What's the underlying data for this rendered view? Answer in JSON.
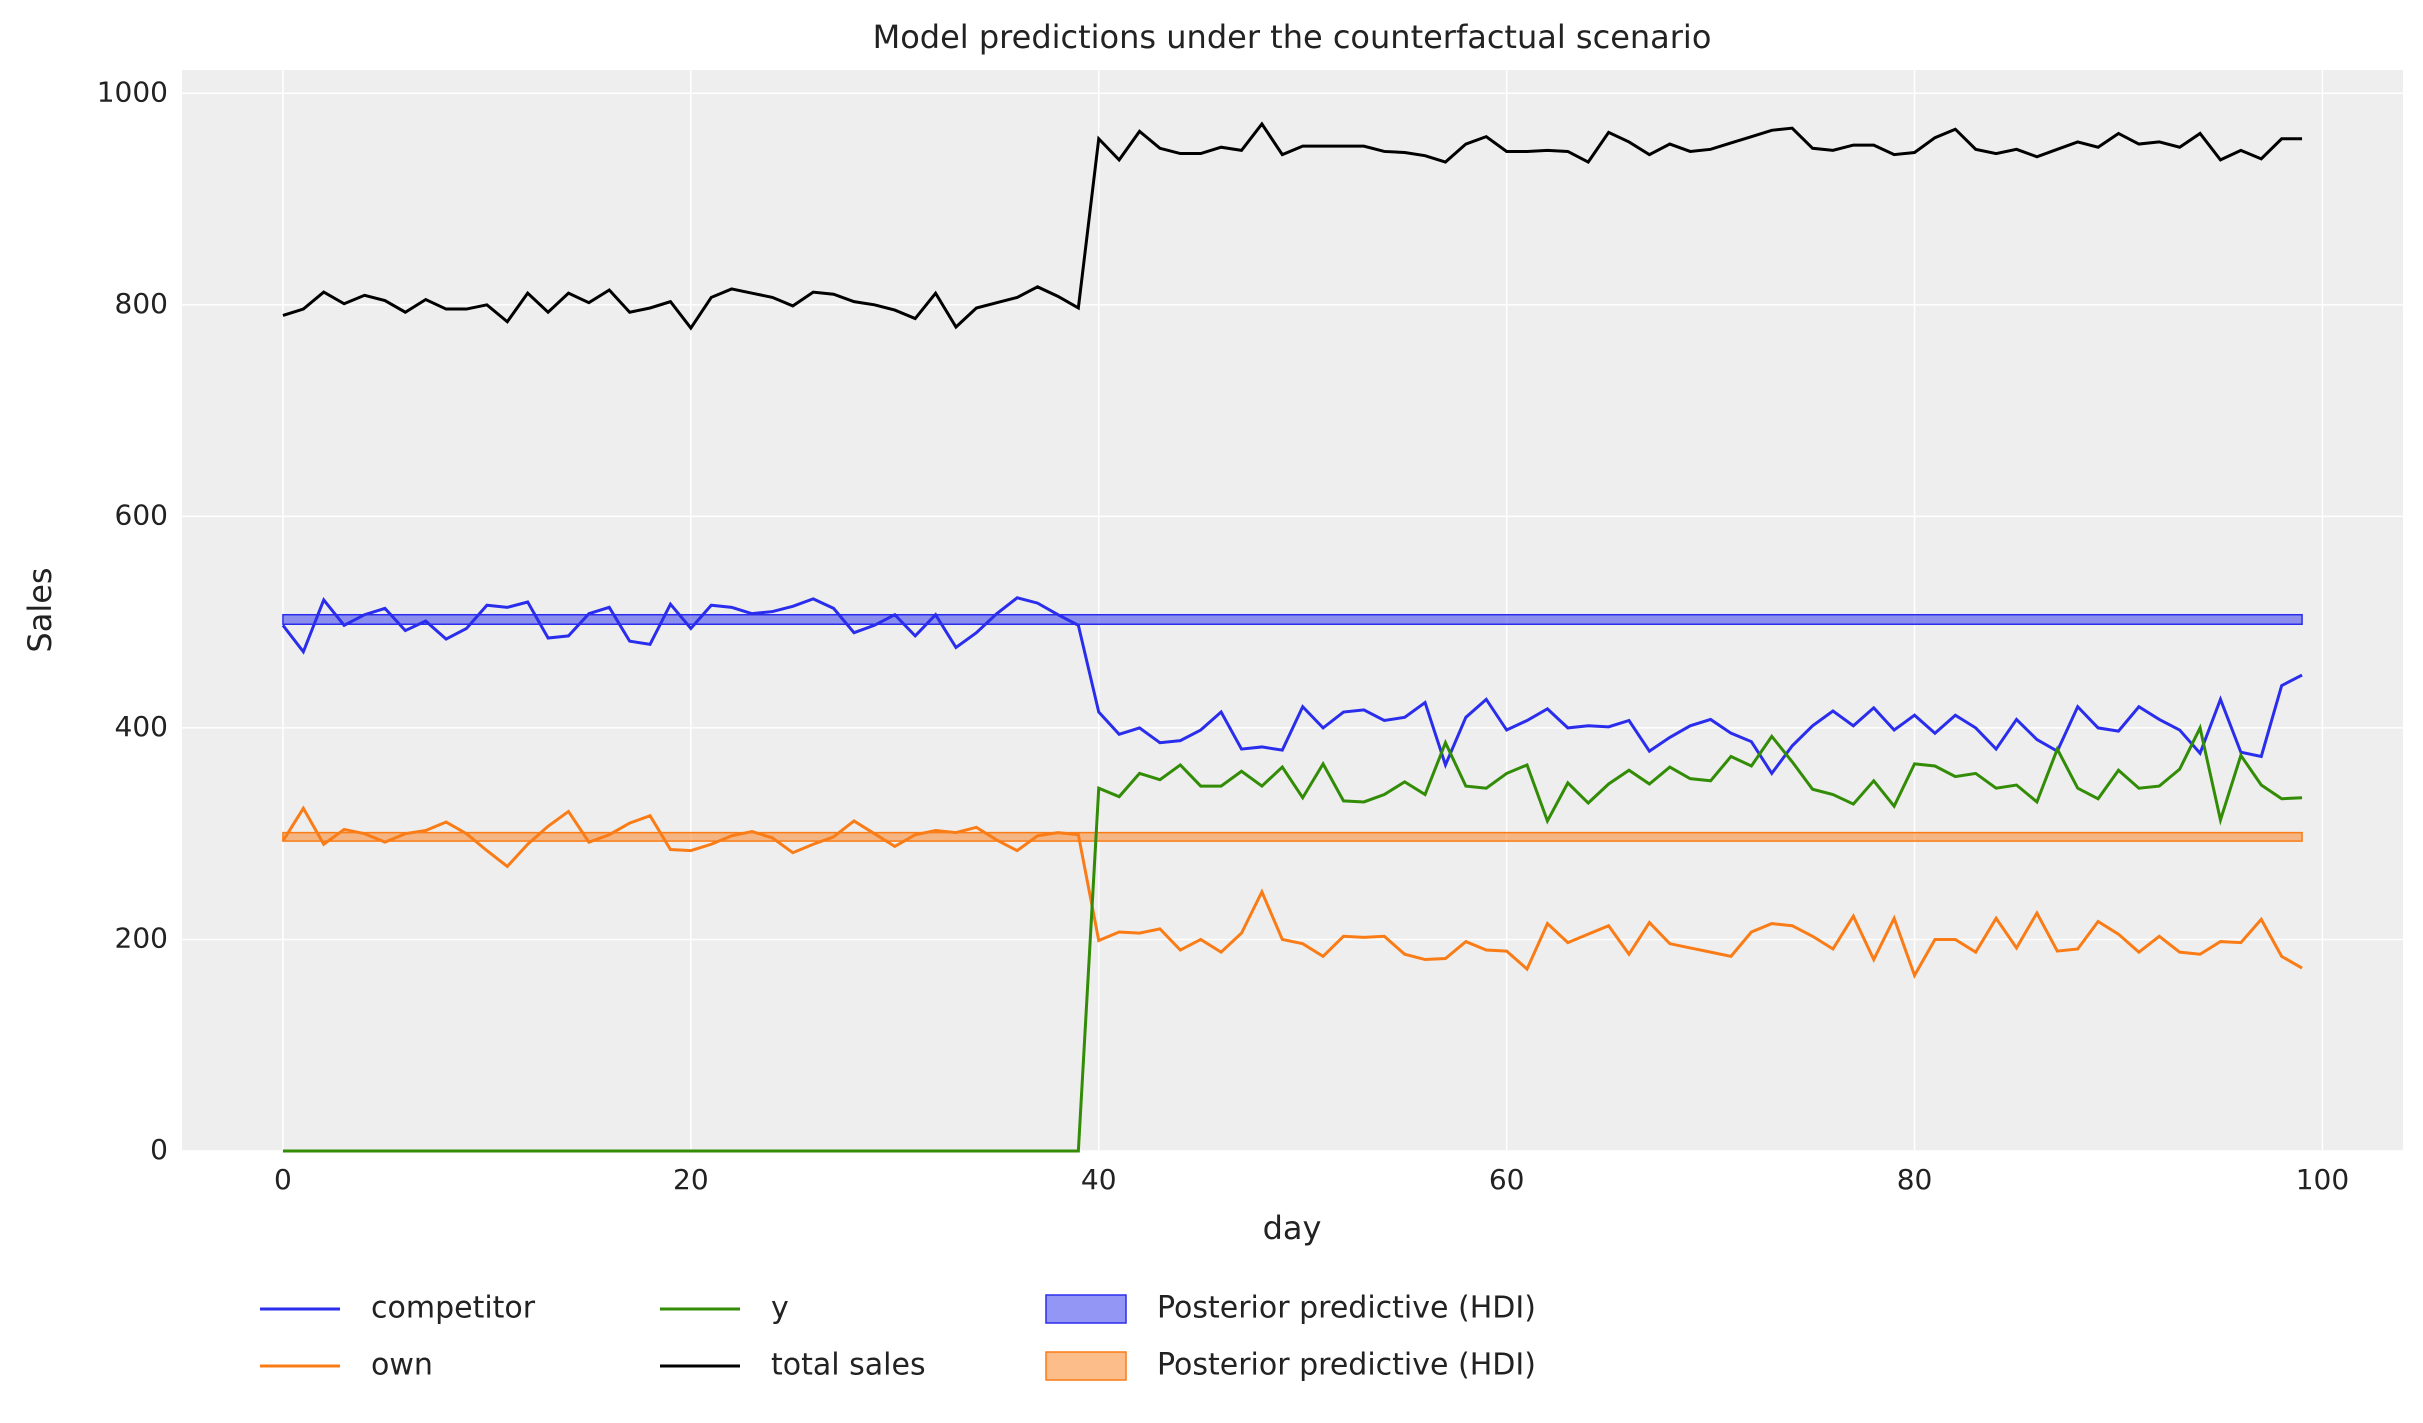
{
  "chart_data": {
    "type": "line",
    "title": "Model predictions under the counterfactual scenario",
    "x_label": "day",
    "y_label": "Sales",
    "x": [
      0,
      1,
      2,
      3,
      4,
      5,
      6,
      7,
      8,
      9,
      10,
      11,
      12,
      13,
      14,
      15,
      16,
      17,
      18,
      19,
      20,
      21,
      22,
      23,
      24,
      25,
      26,
      27,
      28,
      29,
      30,
      31,
      32,
      33,
      34,
      35,
      36,
      37,
      38,
      39,
      40,
      41,
      42,
      43,
      44,
      45,
      46,
      47,
      48,
      49,
      50,
      51,
      52,
      53,
      54,
      55,
      56,
      57,
      58,
      59,
      60,
      61,
      62,
      63,
      64,
      65,
      66,
      67,
      68,
      69,
      70,
      71,
      72,
      73,
      74,
      75,
      76,
      77,
      78,
      79,
      80,
      81,
      82,
      83,
      84,
      85,
      86,
      87,
      88,
      89,
      90,
      91,
      92,
      93,
      94,
      95,
      96,
      97,
      98,
      99
    ],
    "series": [
      {
        "name": "competitor",
        "color": "#2a2eec",
        "values": [
          497,
          472,
          521,
          497,
          507,
          513,
          492,
          501,
          484,
          494,
          516,
          514,
          519,
          485,
          487,
          508,
          514,
          482,
          479,
          517,
          494,
          516,
          514,
          508,
          510,
          515,
          522,
          513,
          490,
          497,
          507,
          487,
          507,
          476,
          490,
          508,
          523,
          518,
          507,
          497,
          415,
          394,
          400,
          386,
          388,
          398,
          415,
          380,
          382,
          379,
          420,
          400,
          415,
          417,
          407,
          410,
          424,
          365,
          410,
          427,
          398,
          407,
          418,
          400,
          402,
          401,
          407,
          378,
          391,
          402,
          408,
          395,
          387,
          357,
          383,
          402,
          416,
          402,
          419,
          398,
          412,
          395,
          412,
          400,
          380,
          408,
          389,
          378,
          420,
          400,
          397,
          420,
          408,
          398,
          376,
          427,
          377,
          373,
          440,
          450
        ]
      },
      {
        "name": "own",
        "color": "#fa7c17",
        "values": [
          293,
          324,
          290,
          304,
          300,
          292,
          300,
          303,
          311,
          300,
          284,
          269,
          290,
          307,
          321,
          292,
          299,
          310,
          317,
          285,
          284,
          290,
          298,
          302,
          296,
          282,
          290,
          297,
          312,
          300,
          288,
          299,
          303,
          301,
          306,
          294,
          284,
          298,
          301,
          299,
          199,
          207,
          206,
          210,
          190,
          200,
          188,
          206,
          245,
          200,
          196,
          184,
          203,
          202,
          203,
          186,
          181,
          182,
          198,
          190,
          189,
          172,
          215,
          197,
          205,
          213,
          186,
          216,
          196,
          192,
          188,
          184,
          207,
          215,
          213,
          203,
          191,
          222,
          181,
          220,
          166,
          200,
          200,
          188,
          220,
          192,
          225,
          189,
          191,
          217,
          205,
          188,
          203,
          188,
          186,
          198,
          197,
          219,
          184,
          173
        ]
      },
      {
        "name": "y",
        "color": "#328c06",
        "values": [
          0,
          0,
          0,
          0,
          0,
          0,
          0,
          0,
          0,
          0,
          0,
          0,
          0,
          0,
          0,
          0,
          0,
          0,
          0,
          0,
          0,
          0,
          0,
          0,
          0,
          0,
          0,
          0,
          0,
          0,
          0,
          0,
          0,
          0,
          0,
          0,
          0,
          0,
          0,
          0,
          343,
          335,
          357,
          351,
          365,
          345,
          345,
          359,
          345,
          363,
          334,
          366,
          331,
          330,
          337,
          349,
          337,
          386,
          345,
          343,
          357,
          365,
          312,
          348,
          329,
          347,
          360,
          347,
          363,
          352,
          350,
          373,
          364,
          392,
          368,
          342,
          337,
          328,
          350,
          326,
          366,
          364,
          354,
          357,
          343,
          346,
          330,
          380,
          343,
          333,
          360,
          343,
          345,
          361,
          400,
          313,
          374,
          346,
          333,
          334
        ]
      },
      {
        "name": "total sales",
        "color": "#000000",
        "values": [
          790,
          796,
          812,
          801,
          809,
          804,
          793,
          805,
          796,
          796,
          800,
          784,
          811,
          793,
          811,
          802,
          814,
          793,
          797,
          803,
          778,
          807,
          815,
          811,
          807,
          799,
          812,
          810,
          803,
          800,
          795,
          787,
          811,
          779,
          797,
          802,
          807,
          817,
          808,
          797,
          957,
          937,
          964,
          948,
          943,
          943,
          949,
          946,
          971,
          942,
          950,
          950,
          950,
          950,
          945,
          944,
          941,
          935,
          952,
          959,
          945,
          945,
          946,
          945,
          935,
          963,
          954,
          942,
          952,
          945,
          947,
          953,
          959,
          965,
          967,
          948,
          946,
          951,
          951,
          942,
          944,
          958,
          966,
          947,
          943,
          947,
          940,
          947,
          954,
          949,
          962,
          952,
          954,
          949,
          962,
          937,
          946,
          938,
          957,
          957
        ]
      }
    ],
    "bands": [
      {
        "name": "Posterior predictive (HDI)",
        "color": "#2a2eec",
        "x_range": [
          0,
          99
        ],
        "lower": 498,
        "upper": 507
      },
      {
        "name": "Posterior predictive (HDI)",
        "color": "#fa7c17",
        "x_range": [
          0,
          99
        ],
        "lower": 293,
        "upper": 301
      }
    ],
    "xlim": [
      -4.95,
      103.95
    ],
    "ylim": [
      0,
      1022
    ],
    "xticks": [
      0,
      20,
      40,
      60,
      80,
      100
    ],
    "yticks": [
      0,
      200,
      400,
      600,
      800,
      1000
    ],
    "grid": true,
    "legend": "bottom"
  }
}
